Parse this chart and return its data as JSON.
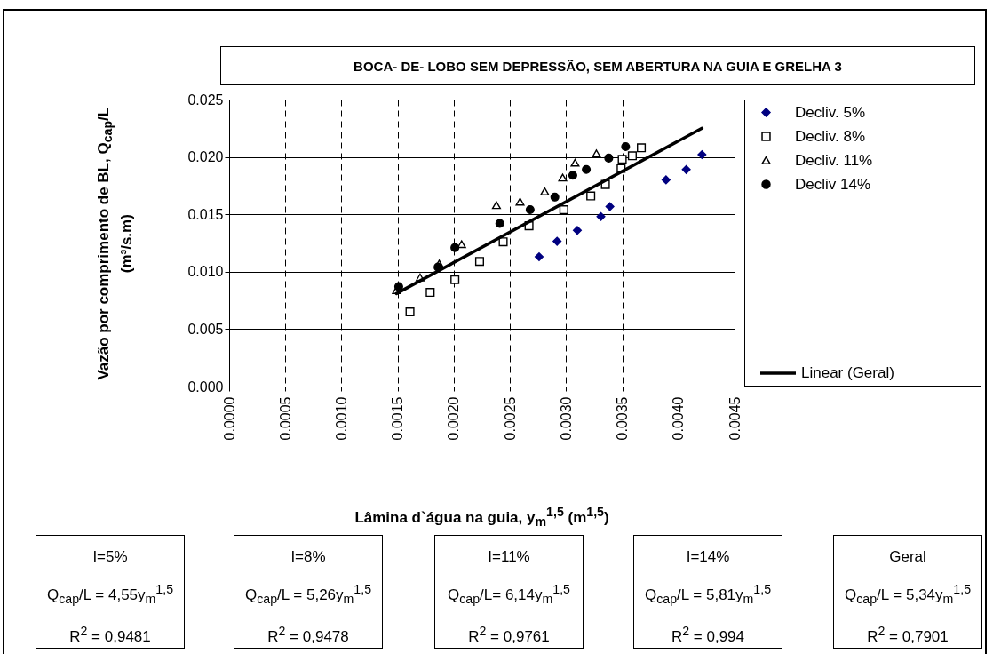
{
  "chart_data": {
    "type": "scatter",
    "title": "BOCA- DE- LOBO SEM DEPRESSÃO,  SEM ABERTURA NA GUIA E GRELHA 3",
    "xlabel": "Lâmina d`água na guia,  y$_{m}$$^{1,5}$ (m$^{1,5}$)",
    "ylabel": "Vazão por comprimento de BL, Q$_{cap}$/L (m³/s.m)",
    "xlim": [
      0,
      0.0045
    ],
    "xticks": [
      {
        "value": 0,
        "label": "0.0000"
      },
      {
        "value": 0.0005,
        "label": "0.0005"
      },
      {
        "value": 0.001,
        "label": "0.0010"
      },
      {
        "value": 0.0015,
        "label": "0.0015"
      },
      {
        "value": 0.002,
        "label": "0.0020"
      },
      {
        "value": 0.0025,
        "label": "0.0025"
      },
      {
        "value": 0.003,
        "label": "0.0030"
      },
      {
        "value": 0.0035,
        "label": "0.0035"
      },
      {
        "value": 0.004,
        "label": "0.0040"
      },
      {
        "value": 0.0045,
        "label": "0.0045"
      }
    ],
    "ylim": [
      0,
      0.025
    ],
    "yticks": [
      {
        "value": 0,
        "label": "0.000"
      },
      {
        "value": 0.005,
        "label": "0.005"
      },
      {
        "value": 0.01,
        "label": "0.010"
      },
      {
        "value": 0.015,
        "label": "0.015"
      },
      {
        "value": 0.02,
        "label": "0.020"
      },
      {
        "value": 0.025,
        "label": "0.025"
      }
    ],
    "grid": true,
    "legend": "right",
    "series": [
      {
        "name": "Decliv. 5%",
        "marker": "diamond",
        "color": "#000080",
        "x": [
          0.00276,
          0.00292,
          0.0031,
          0.00331,
          0.00339,
          0.00389,
          0.00407,
          0.00421
        ],
        "values": [
          0.0113,
          0.01265,
          0.0136,
          0.0148,
          0.01567,
          0.018,
          0.0189,
          0.0202
        ]
      },
      {
        "name": "Decliv. 8%",
        "marker": "square",
        "color": "#000000",
        "x": [
          0.00161,
          0.00179,
          0.00201,
          0.00223,
          0.00244,
          0.00267,
          0.00298,
          0.00322,
          0.00335,
          0.00349,
          0.0035,
          0.00359,
          0.00367
        ],
        "values": [
          0.0065,
          0.0082,
          0.0093,
          0.0109,
          0.0126,
          0.014,
          0.0154,
          0.0166,
          0.0176,
          0.019,
          0.0198,
          0.0201,
          0.0208
        ]
      },
      {
        "name": "Decliv. 11%",
        "marker": "triangle",
        "color": "#000000",
        "x": [
          0.00149,
          0.0017,
          0.00187,
          0.00207,
          0.00238,
          0.00259,
          0.00281,
          0.00297,
          0.00308,
          0.00327
        ],
        "values": [
          0.0084,
          0.0095,
          0.0107,
          0.0124,
          0.0158,
          0.0161,
          0.017,
          0.0182,
          0.0195,
          0.0203
        ]
      },
      {
        "name": "Decliv 14%",
        "marker": "circle",
        "color": "#000000",
        "x": [
          0.00151,
          0.00186,
          0.00201,
          0.00241,
          0.00268,
          0.0029,
          0.00306,
          0.00318,
          0.00338,
          0.00353
        ],
        "values": [
          0.0087,
          0.0104,
          0.0121,
          0.0142,
          0.0154,
          0.0165,
          0.0184,
          0.0189,
          0.0199,
          0.0209
        ]
      },
      {
        "name": "Linear (Geral)",
        "type": "line",
        "color": "#000000",
        "x": [
          0.00149,
          0.00421
        ],
        "values": [
          0.0081,
          0.0225
        ]
      }
    ],
    "annotations": [
      "I=5%\nQ$_{cap}$/L = 4,55y$_{m}$$^{1,5}$\nR$^{2}$ = 0,9481",
      "I=8%\nQ$_{cap}$/L = 5,26y$_{m}$$^{1,5}$\nR$^{2}$ = 0,9478",
      "I=11%\nQ$_{cap}$/L= 6,14y$_{m}$$^{1,5}$\nR$^{2}$ = 0,9761",
      "I=14%\nQ$_{cap}$/L = 5,81y$_{m}$$^{1,5}$\nR$^{2}$ = 0,994",
      "Geral\nQ$_{cap}$/L = 5,34y$_{m}$$^{1,5}$\nR$^{2}$ = 0,7901"
    ]
  }
}
